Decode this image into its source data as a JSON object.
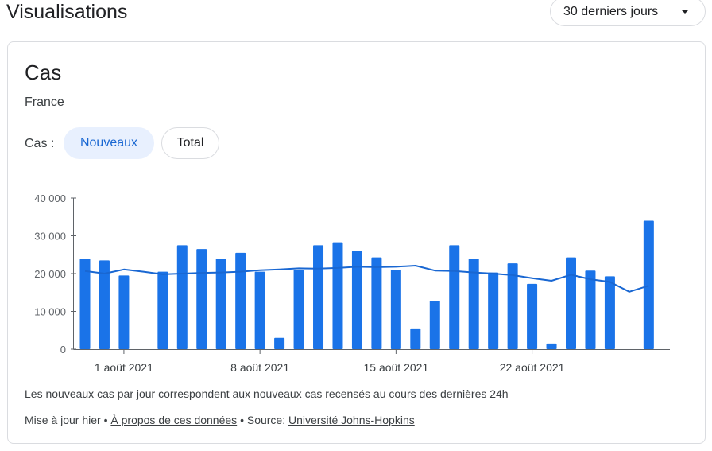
{
  "header": {
    "title": "Visualisations",
    "range_label": "30 derniers jours"
  },
  "card": {
    "title": "Cas",
    "region": "France",
    "toggle_label": "Cas :",
    "toggle_options": [
      "Nouveaux",
      "Total"
    ],
    "footnote": "Les nouveaux cas par jour correspondent aux nouveaux cas recensés au cours des dernières 24h",
    "meta_prefix": "Mise à jour hier •",
    "meta_about": "À propos de ces données",
    "meta_source_prefix": "• Source:",
    "meta_source": "Université Johns-Hopkins"
  },
  "colors": {
    "bar": "#1a73e8",
    "line": "#1967d2",
    "accent": "#1967d2",
    "chip_bg": "#e8f0fe"
  },
  "chart_data": {
    "type": "bar",
    "series": [
      {
        "type": "bar",
        "values": [
          24000,
          23500,
          19500,
          null,
          20500,
          27500,
          26500,
          24000,
          25500,
          20500,
          3000,
          21000,
          27500,
          28300,
          26000,
          24300,
          21000,
          5500,
          12800,
          27500,
          24000,
          20300,
          22700,
          17300,
          1500,
          24300,
          20800,
          19300,
          null,
          34000
        ]
      },
      {
        "type": "line",
        "values": [
          20700,
          20000,
          21100,
          20500,
          19800,
          20000,
          20200,
          20300,
          20500,
          20900,
          21100,
          21400,
          21300,
          21500,
          21800,
          21700,
          21800,
          22100,
          20800,
          20700,
          20300,
          20000,
          19600,
          18800,
          18100,
          19700,
          18500,
          17800,
          15200,
          16800
        ]
      }
    ],
    "x_ticks": [
      {
        "index": 2,
        "label": "1 août 2021"
      },
      {
        "index": 9,
        "label": "8 août 2021"
      },
      {
        "index": 16,
        "label": "15 août 2021"
      },
      {
        "index": 23,
        "label": "22 août 2021"
      }
    ],
    "y_ticks": [
      {
        "value": 0,
        "label": "0"
      },
      {
        "value": 10000,
        "label": "10 000"
      },
      {
        "value": 20000,
        "label": "20 000"
      },
      {
        "value": 30000,
        "label": "30 000"
      },
      {
        "value": 40000,
        "label": "40 000"
      }
    ],
    "ylim": [
      0,
      40000
    ],
    "grid": false
  }
}
